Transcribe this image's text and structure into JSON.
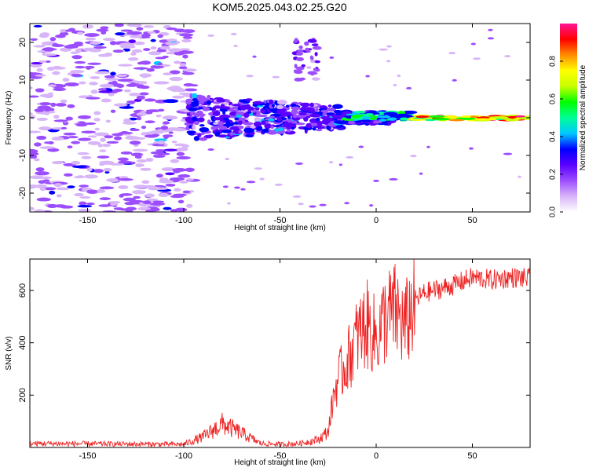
{
  "title": "KOM5.2025.043.02.25.G20",
  "chart_data": [
    {
      "type": "heatmap",
      "title": "KOM5.2025.043.02.25.G20",
      "xlabel": "Height of straight line (km)",
      "ylabel": "Frequency (Hz)",
      "xlim": [
        -180,
        80
      ],
      "ylim": [
        -25,
        25
      ],
      "x_ticks": [
        -150,
        -100,
        -50,
        0,
        50
      ],
      "y_ticks": [
        -20,
        -10,
        0,
        10,
        20
      ],
      "grid": false,
      "colorbar": {
        "label": "Normalized spectral amplitude",
        "range": [
          0.0,
          1.0
        ],
        "ticks": [
          "0.0",
          "0.2",
          "0.4",
          "0.6",
          "0.8"
        ],
        "colormap": [
          "#ffffff",
          "#d8b4f8",
          "#9b4dff",
          "#5a00ff",
          "#0000ff",
          "#00c8ff",
          "#00ff96",
          "#00ff00",
          "#c8ff00",
          "#ffff00",
          "#ff8c00",
          "#ff0000",
          "#ff1493"
        ]
      },
      "features": [
        {
          "name": "scattered weak noise",
          "x": [
            -180,
            -100
          ],
          "y": [
            -25,
            25
          ],
          "amplitude": 0.1
        },
        {
          "name": "irregular patch",
          "x": [
            -100,
            -15
          ],
          "y": [
            -6,
            6
          ],
          "amplitude": 0.3
        },
        {
          "name": "upper streak",
          "x": [
            -42,
            -30
          ],
          "y": [
            10,
            21
          ],
          "amplitude": 0.2
        },
        {
          "name": "main line near 0 Hz",
          "x": [
            -20,
            80
          ],
          "y": [
            -1,
            1
          ],
          "amplitude": 0.95
        }
      ]
    },
    {
      "type": "line",
      "xlabel": "Height of straight line (km)",
      "ylabel": "SNR (v/v)",
      "xlim": [
        -180,
        80
      ],
      "ylim": [
        0,
        720
      ],
      "x_ticks": [
        -150,
        -100,
        -50,
        0,
        50
      ],
      "y_ticks": [
        200,
        400,
        600
      ],
      "color": "#ee2222",
      "series_envelope": {
        "x": [
          -180,
          -100,
          -90,
          -80,
          -70,
          -60,
          -50,
          -40,
          -30,
          -25,
          -22,
          -20,
          -15,
          -10,
          -5,
          0,
          5,
          10,
          15,
          20,
          25,
          30,
          40,
          50,
          60,
          70,
          80
        ],
        "y": [
          15,
          12,
          40,
          90,
          55,
          15,
          12,
          15,
          30,
          60,
          200,
          260,
          330,
          420,
          470,
          420,
          500,
          520,
          460,
          560,
          590,
          600,
          620,
          650,
          640,
          650,
          645
        ]
      }
    }
  ]
}
